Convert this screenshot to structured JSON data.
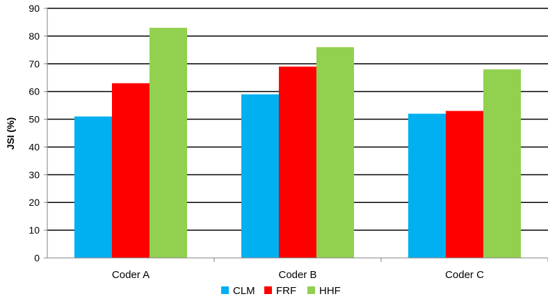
{
  "chart_data": {
    "type": "bar",
    "title": "",
    "xlabel": "",
    "ylabel": "JSI (%)",
    "ylim": [
      0,
      90
    ],
    "yticks": [
      0,
      10,
      20,
      30,
      40,
      50,
      60,
      70,
      80,
      90
    ],
    "grid": true,
    "legend_position": "bottom",
    "categories": [
      "Coder A",
      "Coder B",
      "Coder C"
    ],
    "series": [
      {
        "name": "CLM",
        "color": "#00b0f0",
        "values": [
          51,
          59,
          52
        ]
      },
      {
        "name": "FRF",
        "color": "#ff0000",
        "values": [
          63,
          69,
          53
        ]
      },
      {
        "name": "HHF",
        "color": "#92d050",
        "values": [
          83,
          76,
          68
        ]
      }
    ]
  }
}
